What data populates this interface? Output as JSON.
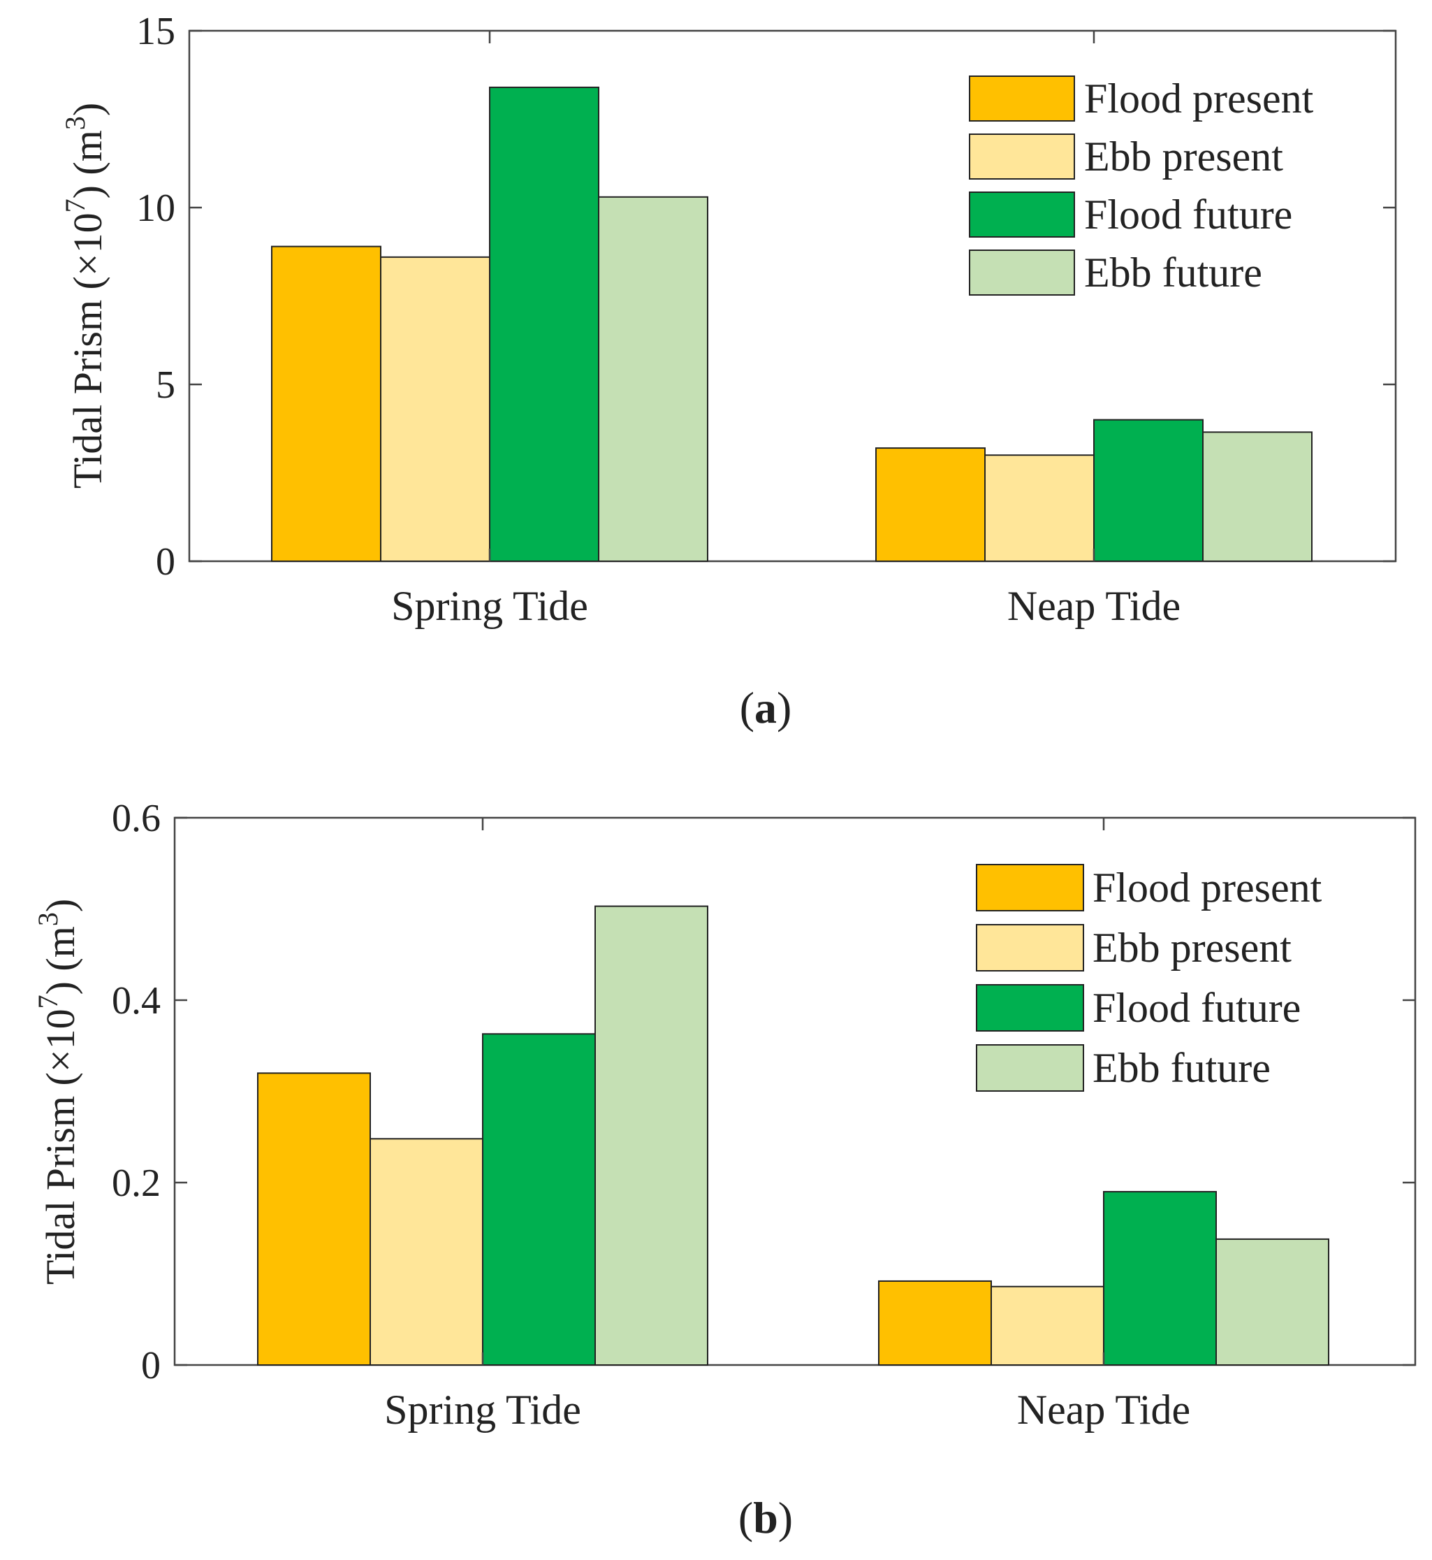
{
  "chart_data": [
    {
      "type": "bar",
      "panel_label": "a",
      "categories": [
        "Spring Tide",
        "Neap Tide"
      ],
      "series": [
        {
          "name": "Flood present",
          "values": [
            8.9,
            3.2
          ],
          "color": "#FFC000"
        },
        {
          "name": "Ebb present",
          "values": [
            8.6,
            3.0
          ],
          "color": "#FFE699"
        },
        {
          "name": "Flood future",
          "values": [
            13.4,
            4.0
          ],
          "color": "#00B050"
        },
        {
          "name": "Ebb future",
          "values": [
            10.3,
            3.65
          ],
          "color": "#C5E0B4"
        }
      ],
      "ylabel": {
        "main": "Tidal Prism (×10",
        "exp": "7",
        "tail": ") (m",
        "unit_exp": "3",
        "end": ")"
      },
      "ylim": [
        0,
        15
      ],
      "yticks": [
        0,
        5,
        10,
        15
      ],
      "ytick_labels": [
        "0",
        "5",
        "10",
        "15"
      ],
      "legend_position": "top-right",
      "grid": false
    },
    {
      "type": "bar",
      "panel_label": "b",
      "categories": [
        "Spring Tide",
        "Neap Tide"
      ],
      "series": [
        {
          "name": "Flood present",
          "values": [
            0.32,
            0.092
          ],
          "color": "#FFC000"
        },
        {
          "name": "Ebb present",
          "values": [
            0.248,
            0.086
          ],
          "color": "#FFE699"
        },
        {
          "name": "Flood future",
          "values": [
            0.363,
            0.19
          ],
          "color": "#00B050"
        },
        {
          "name": "Ebb future",
          "values": [
            0.503,
            0.138
          ],
          "color": "#C5E0B4"
        }
      ],
      "ylabel": {
        "main": "Tidal Prism (×10",
        "exp": "7",
        "tail": ") (m",
        "unit_exp": "3",
        "end": ")"
      },
      "ylim": [
        0,
        0.6
      ],
      "yticks": [
        0,
        0.2,
        0.4,
        0.6
      ],
      "ytick_labels": [
        "0",
        "0.2",
        "0.4",
        "0.6"
      ],
      "legend_position": "top-right",
      "grid": false
    }
  ],
  "captions": [
    {
      "open": "(",
      "letter": "a",
      "close": ")"
    },
    {
      "open": "(",
      "letter": "b",
      "close": ")"
    }
  ]
}
